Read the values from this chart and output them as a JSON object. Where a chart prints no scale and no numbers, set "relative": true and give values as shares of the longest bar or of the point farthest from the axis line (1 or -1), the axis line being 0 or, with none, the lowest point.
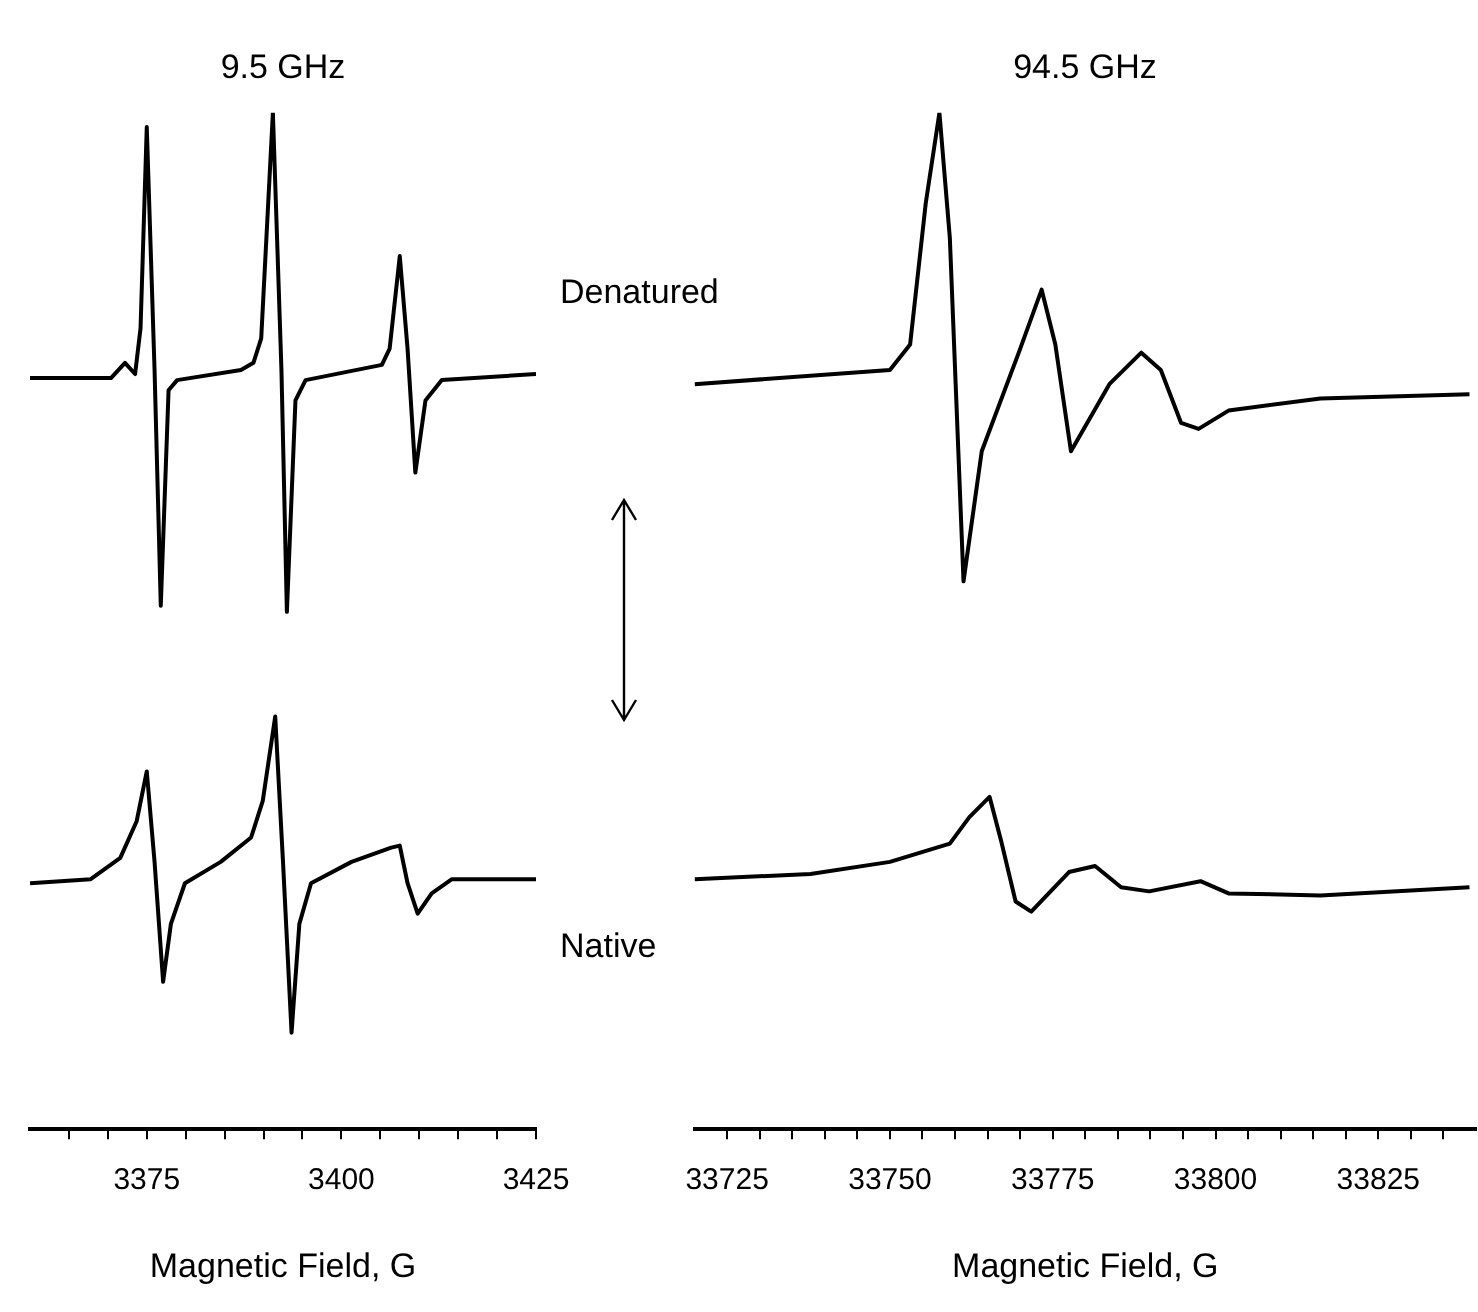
{
  "chart_data": [
    {
      "type": "line",
      "title": "9.5 GHz",
      "xlabel": "Magnetic Field, G",
      "relative": true,
      "xlim": [
        3360,
        3425
      ],
      "xticks": [
        {
          "value": 3365,
          "label": null
        },
        {
          "value": 3370,
          "label": null
        },
        3375,
        {
          "value": 3380,
          "label": null
        },
        {
          "value": 3385,
          "label": null
        },
        {
          "value": 3390,
          "label": null
        },
        {
          "value": 3395,
          "label": null
        },
        3400,
        {
          "value": 3405,
          "label": null
        },
        {
          "value": 3410,
          "label": null
        },
        {
          "value": 3415,
          "label": null
        },
        {
          "value": 3420,
          "label": null
        },
        3425
      ],
      "marker": "none",
      "grid": false,
      "legend": false,
      "series": [
        {
          "name": "Denatured",
          "color": "#000000",
          "x": [
            3360,
            3370.4,
            3372.2,
            3373.5,
            3374.2,
            3375,
            3376,
            3376.8,
            3377.8,
            3378.9,
            3387.1,
            3388.7,
            3389.7,
            3391.2,
            3392.3,
            3393,
            3394.1,
            3395.4,
            3405.2,
            3406.2,
            3407.5,
            3408.5,
            3409.5,
            3410.8,
            3412.9,
            3425
          ],
          "values": [
            0.739,
            0.739,
            0.754,
            0.743,
            0.788,
            0.986,
            0.747,
            0.515,
            0.727,
            0.737,
            0.747,
            0.754,
            0.778,
            1.0,
            0.747,
            0.509,
            0.717,
            0.737,
            0.752,
            0.768,
            0.859,
            0.768,
            0.646,
            0.717,
            0.737,
            0.743
          ]
        },
        {
          "name": "Native",
          "color": "#000000",
          "x": [
            3360,
            3367.8,
            3371.6,
            3373.7,
            3375,
            3376,
            3377.1,
            3378.1,
            3379.9,
            3384.5,
            3388.4,
            3389.9,
            3391.5,
            3392.5,
            3393.6,
            3394.6,
            3396.1,
            3401.3,
            3406.4,
            3407.5,
            3408.5,
            3409.8,
            3411.6,
            3414.2,
            3425
          ],
          "values": [
            0.242,
            0.246,
            0.267,
            0.303,
            0.352,
            0.263,
            0.145,
            0.202,
            0.242,
            0.263,
            0.287,
            0.323,
            0.406,
            0.263,
            0.095,
            0.202,
            0.242,
            0.263,
            0.277,
            0.279,
            0.242,
            0.212,
            0.232,
            0.246,
            0.246
          ]
        }
      ]
    },
    {
      "type": "line",
      "title": "94.5 GHz",
      "xlabel": "Magnetic Field, G",
      "relative": true,
      "xlim": [
        33720,
        33840
      ],
      "xticks": [
        33725,
        {
          "value": 33730,
          "label": null
        },
        {
          "value": 33735,
          "label": null
        },
        {
          "value": 33740,
          "label": null
        },
        {
          "value": 33745,
          "label": null
        },
        33750,
        {
          "value": 33755,
          "label": null
        },
        {
          "value": 33760,
          "label": null
        },
        {
          "value": 33765,
          "label": null
        },
        {
          "value": 33770,
          "label": null
        },
        33775,
        {
          "value": 33780,
          "label": null
        },
        {
          "value": 33785,
          "label": null
        },
        {
          "value": 33790,
          "label": null
        },
        {
          "value": 33795,
          "label": null
        },
        33800,
        {
          "value": 33805,
          "label": null
        },
        {
          "value": 33810,
          "label": null
        },
        {
          "value": 33815,
          "label": null
        },
        {
          "value": 33820,
          "label": null
        },
        33825,
        {
          "value": 33830,
          "label": null
        },
        {
          "value": 33835,
          "label": null
        }
      ],
      "marker": "none",
      "grid": false,
      "legend": false,
      "series": [
        {
          "color": "#000000",
          "x": [
            33720,
            33750,
            33753.1,
            33755.5,
            33757.6,
            33759.2,
            33761.3,
            33764.1,
            33769.9,
            33773.3,
            33775.4,
            33777.8,
            33783.7,
            33788.6,
            33791.6,
            33794.7,
            33797.4,
            33802,
            33816.1,
            33839
          ],
          "values": [
            0.733,
            0.747,
            0.772,
            0.911,
            1.0,
            0.877,
            0.539,
            0.667,
            0.766,
            0.826,
            0.772,
            0.667,
            0.733,
            0.764,
            0.747,
            0.695,
            0.689,
            0.707,
            0.719,
            0.723
          ]
        },
        {
          "color": "#000000",
          "x": [
            33720,
            33737.8,
            33750,
            33759.2,
            33762.2,
            33765.3,
            33767.1,
            33769.3,
            33771.7,
            33777.5,
            33781.5,
            33785.5,
            33789.8,
            33797.7,
            33802,
            33816.1,
            33839
          ],
          "values": [
            0.246,
            0.251,
            0.263,
            0.281,
            0.307,
            0.327,
            0.283,
            0.224,
            0.214,
            0.253,
            0.259,
            0.238,
            0.234,
            0.244,
            0.232,
            0.23,
            0.238
          ]
        }
      ]
    }
  ]
}
